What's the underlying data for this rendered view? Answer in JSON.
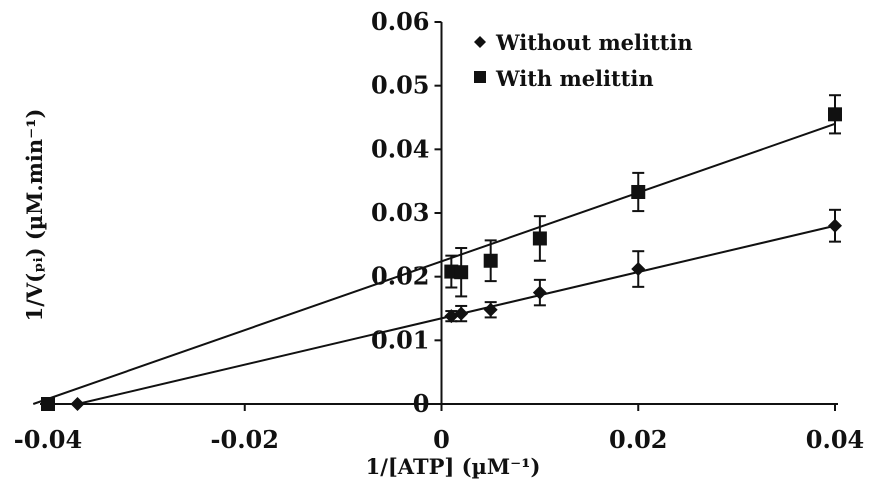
{
  "chart_data": {
    "type": "scatter",
    "title": "",
    "xlabel": "1/[ATP] (µM⁻¹)",
    "ylabel": "1/V(ₚᵢ) (µM.min⁻¹)",
    "xlim": [
      -0.04,
      0.04
    ],
    "ylim": [
      0,
      0.06
    ],
    "x_ticks": [
      -0.04,
      -0.02,
      0,
      0.02,
      0.04
    ],
    "y_ticks": [
      0,
      0.01,
      0.02,
      0.03,
      0.04,
      0.05,
      0.06
    ],
    "x_tick_labels": [
      "-0.04",
      "-0.02",
      "0",
      "0.02",
      "0.04"
    ],
    "y_tick_labels": [
      "0",
      "0.01",
      "0.02",
      "0.03",
      "0.04",
      "0.05",
      "0.06"
    ],
    "grid": false,
    "legend_position": "top-right",
    "series": [
      {
        "name": "Without melittin",
        "marker": "diamond",
        "color": "#111111",
        "x": [
          -0.037,
          0.001,
          0.002,
          0.005,
          0.01,
          0.02,
          0.04
        ],
        "y": [
          0.0,
          0.0138,
          0.0142,
          0.0148,
          0.0175,
          0.0212,
          0.028
        ],
        "error": [
          0,
          0.0008,
          0.0012,
          0.0012,
          0.002,
          0.0028,
          0.0025
        ],
        "fit": {
          "x": [
            -0.037,
            0.04
          ],
          "y": [
            0.0,
            0.028
          ]
        }
      },
      {
        "name": "With melittin",
        "marker": "square",
        "color": "#111111",
        "x": [
          -0.04,
          0.001,
          0.002,
          0.005,
          0.01,
          0.02,
          0.04
        ],
        "y": [
          0.0,
          0.0208,
          0.0207,
          0.0225,
          0.026,
          0.0333,
          0.0455
        ],
        "error": [
          0,
          0.0025,
          0.0038,
          0.0032,
          0.0035,
          0.003,
          0.003
        ],
        "fit": {
          "x": [
            -0.0415,
            0.04
          ],
          "y": [
            0.0,
            0.044
          ]
        }
      }
    ]
  }
}
